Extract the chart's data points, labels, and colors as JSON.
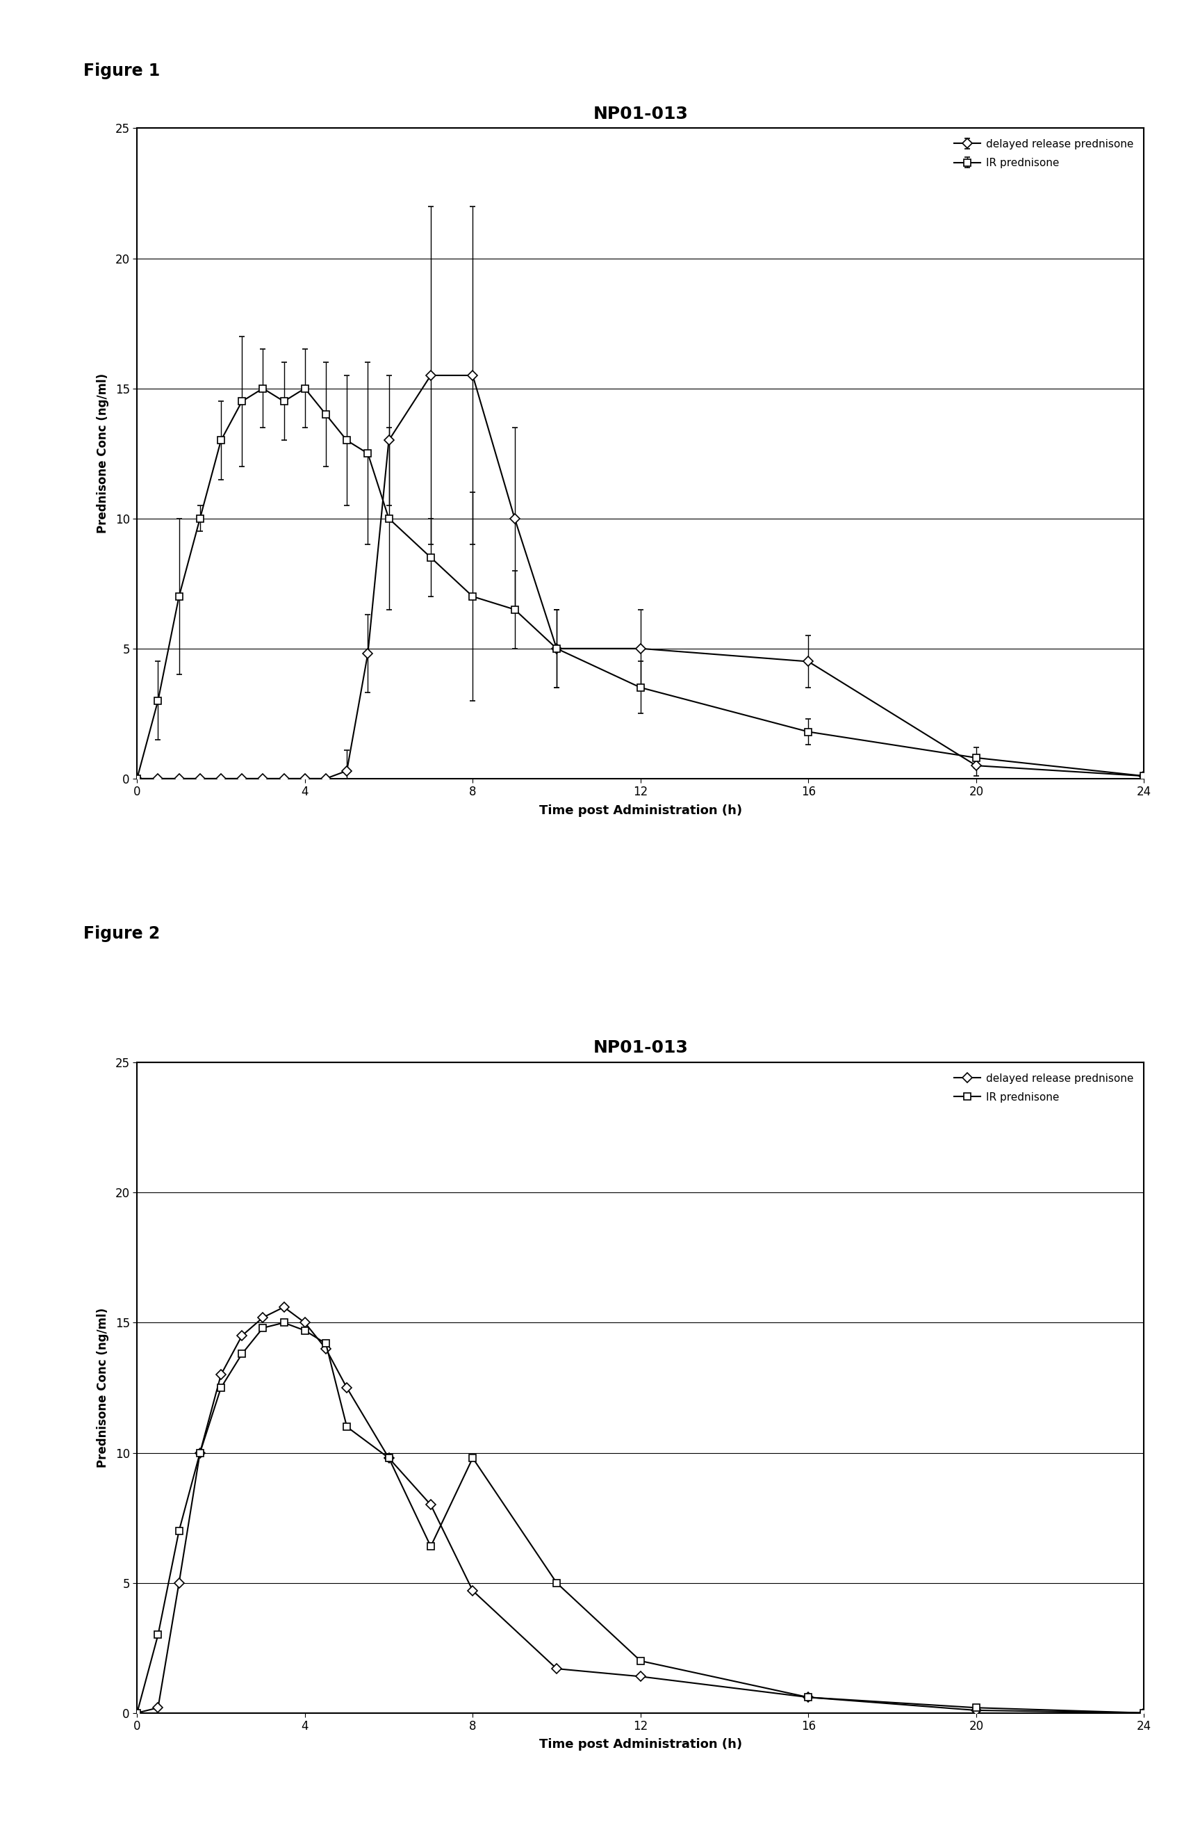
{
  "fig1": {
    "title": "NP01-013",
    "xlabel": "Time post Administration (h)",
    "ylabel": "Prednisone Conc (ng/ml)",
    "xlim": [
      0,
      24
    ],
    "ylim": [
      0,
      25
    ],
    "yticks": [
      0,
      5,
      10,
      15,
      20,
      25
    ],
    "xticks": [
      0,
      4,
      8,
      12,
      16,
      20,
      24
    ],
    "dr_x": [
      0,
      0.5,
      1,
      1.5,
      2,
      2.5,
      3,
      3.5,
      4,
      4.5,
      5,
      5.5,
      6,
      7,
      8,
      9,
      10,
      12,
      16,
      20,
      24
    ],
    "dr_y": [
      0,
      0,
      0,
      0,
      0,
      0,
      0,
      0,
      0,
      0,
      0.3,
      4.8,
      13.0,
      15.5,
      15.5,
      10.0,
      5.0,
      5.0,
      4.5,
      0.5,
      0.1
    ],
    "dr_err": [
      0,
      0,
      0,
      0,
      0,
      0,
      0,
      0,
      0,
      0,
      0.8,
      1.5,
      2.5,
      6.5,
      6.5,
      3.5,
      1.5,
      1.5,
      1.0,
      0.4,
      0.1
    ],
    "ir_x": [
      0,
      0.5,
      1,
      1.5,
      2,
      2.5,
      3,
      3.5,
      4,
      4.5,
      5,
      5.5,
      6,
      7,
      8,
      9,
      10,
      12,
      16,
      20,
      24
    ],
    "ir_y": [
      0,
      3.0,
      7.0,
      10.0,
      13.0,
      14.5,
      15.0,
      14.5,
      15.0,
      14.0,
      13.0,
      12.5,
      10.0,
      8.5,
      7.0,
      6.5,
      5.0,
      3.5,
      1.8,
      0.8,
      0.1
    ],
    "ir_err": [
      0,
      1.5,
      3.0,
      0.5,
      1.5,
      2.5,
      1.5,
      1.5,
      1.5,
      2.0,
      2.5,
      3.5,
      3.5,
      1.5,
      4.0,
      1.5,
      1.5,
      1.0,
      0.5,
      0.4,
      0.1
    ]
  },
  "fig2": {
    "title": "NP01-013",
    "xlabel": "Time post Administration (h)",
    "ylabel": "Prednisone Conc (ng/ml)",
    "xlim": [
      0,
      24
    ],
    "ylim": [
      0,
      25
    ],
    "yticks": [
      0,
      5,
      10,
      15,
      20,
      25
    ],
    "xticks": [
      0,
      4,
      8,
      12,
      16,
      20,
      24
    ],
    "dr_x": [
      0,
      0.5,
      1,
      1.5,
      2,
      2.5,
      3,
      3.5,
      4,
      4.5,
      5,
      6,
      7,
      8,
      10,
      12,
      16,
      20,
      24
    ],
    "dr_y": [
      0,
      0.2,
      5.0,
      10.0,
      13.0,
      14.5,
      15.2,
      15.6,
      15.0,
      14.0,
      12.5,
      9.8,
      8.0,
      4.7,
      1.7,
      1.4,
      0.6,
      0.1,
      0.0
    ],
    "ir_x": [
      0,
      0.5,
      1,
      1.5,
      2,
      2.5,
      3,
      3.5,
      4,
      4.5,
      5,
      6,
      7,
      8,
      10,
      12,
      16,
      20,
      24
    ],
    "ir_y": [
      0,
      3.0,
      7.0,
      10.0,
      12.5,
      13.8,
      14.8,
      15.0,
      14.7,
      14.2,
      11.0,
      9.8,
      6.4,
      9.8,
      5.0,
      2.0,
      0.6,
      0.2,
      0.0
    ]
  },
  "figure1_label": "Figure 1",
  "figure2_label": "Figure 2",
  "legend_dr": "delayed release prednisone",
  "legend_ir": "IR prednisone",
  "background_color": "#ffffff"
}
